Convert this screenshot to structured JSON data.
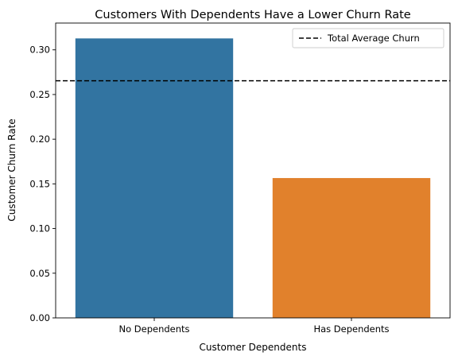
{
  "chart_data": {
    "type": "bar",
    "title": "Customers With Dependents Have a Lower Churn Rate",
    "xlabel": "Customer Dependents",
    "ylabel": "Customer Churn Rate",
    "categories": [
      "No Dependents",
      "Has Dependents"
    ],
    "values": [
      0.3128,
      0.1565
    ],
    "colors": [
      "#3274a1",
      "#e1812c"
    ],
    "ylim": [
      0,
      0.33
    ],
    "yticks": [
      0.0,
      0.05,
      0.1,
      0.15,
      0.2,
      0.25,
      0.3
    ],
    "ytick_labels": [
      "0.00",
      "0.05",
      "0.10",
      "0.15",
      "0.20",
      "0.25",
      "0.30"
    ],
    "reference_line": {
      "label": "Total Average Churn",
      "value": 0.2654,
      "style": "dashed",
      "color": "#000000"
    },
    "legend_position": "top-right",
    "grid": false
  }
}
